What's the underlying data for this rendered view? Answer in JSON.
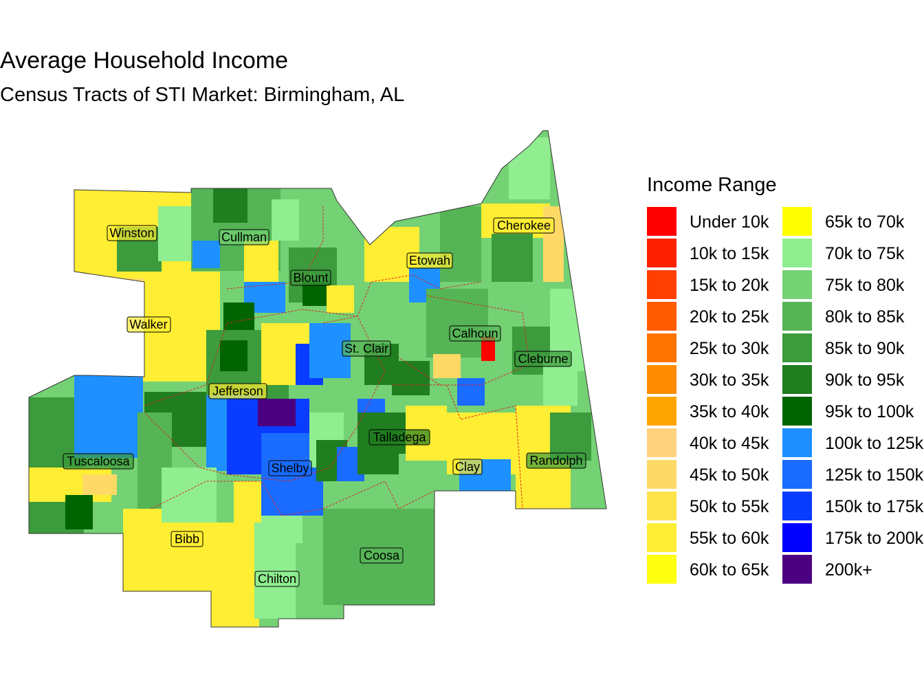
{
  "title": "Average Household Income",
  "subtitle": "Census Tracts of STI Market: Birmingham, AL",
  "legend": {
    "title": "Income Range",
    "items": [
      {
        "label": "Under 10k",
        "color": "#FF0000"
      },
      {
        "label": "10k to 15k",
        "color": "#FF2000"
      },
      {
        "label": "15k to 20k",
        "color": "#FF4000"
      },
      {
        "label": "20k to 25k",
        "color": "#FF5C00"
      },
      {
        "label": "25k to 30k",
        "color": "#FF7400"
      },
      {
        "label": "30k to 35k",
        "color": "#FF8C00"
      },
      {
        "label": "35k to 40k",
        "color": "#FFA500"
      },
      {
        "label": "40k to 45k",
        "color": "#FFD27F"
      },
      {
        "label": "45k to 50k",
        "color": "#FFD966"
      },
      {
        "label": "50k to 55k",
        "color": "#FFE34A"
      },
      {
        "label": "55k to 60k",
        "color": "#FFEE33"
      },
      {
        "label": "60k to 65k",
        "color": "#FFFF10"
      },
      {
        "label": "65k to 70k",
        "color": "#FFFF00"
      },
      {
        "label": "70k to 75k",
        "color": "#90EE90"
      },
      {
        "label": "75k to 80k",
        "color": "#74D174"
      },
      {
        "label": "80k to 85k",
        "color": "#55B455"
      },
      {
        "label": "85k to 90k",
        "color": "#3C9B3C"
      },
      {
        "label": "90k to 95k",
        "color": "#207D20"
      },
      {
        "label": "95k to 100k",
        "color": "#006400"
      },
      {
        "label": "100k to 125k",
        "color": "#1E90FF"
      },
      {
        "label": "125k to 150k",
        "color": "#1A6BFF"
      },
      {
        "label": "150k to 175k",
        "color": "#0A3CFF"
      },
      {
        "label": "175k to 200k",
        "color": "#0000FF"
      },
      {
        "label": "200k+",
        "color": "#4B0082"
      }
    ]
  },
  "counties": [
    "Winston",
    "Cullman",
    "Cherokee",
    "Etowah",
    "Blount",
    "Walker",
    "Calhoun",
    "St. Clair",
    "Cleburne",
    "Jefferson",
    "Talladega",
    "Tuscaloosa",
    "Randolph",
    "Clay",
    "Shelby",
    "Bibb",
    "Coosa",
    "Chilton"
  ]
}
